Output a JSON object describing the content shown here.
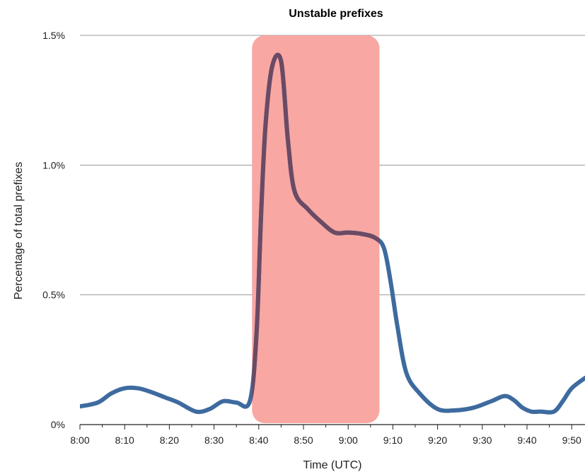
{
  "chart_data": {
    "type": "line",
    "title": "Unstable prefixes",
    "xlabel": "Time (UTC)",
    "ylabel": "Percentage of total prefixes",
    "x_tick_labels": [
      "8:00",
      "8:10",
      "8:20",
      "8:30",
      "8:40",
      "8:50",
      "9:00",
      "9:10",
      "9:20",
      "9:30",
      "9:40",
      "9:50"
    ],
    "y_tick_labels": [
      "0%",
      "0.5%",
      "1.0%",
      "1.5%"
    ],
    "y_ticks": [
      0,
      0.5,
      1.0,
      1.5
    ],
    "xlim_minutes": [
      0,
      113
    ],
    "ylim": [
      0,
      1.5
    ],
    "grid": true,
    "highlight_region": {
      "from_minutes": 38.5,
      "to_minutes": 67,
      "color": "#f8a7a2"
    },
    "series": [
      {
        "color": "#3e6b9f",
        "highlight_color": "#6b4a64",
        "x_minutes": [
          0,
          4,
          7,
          10,
          13,
          16,
          19,
          22,
          26,
          29,
          32,
          35,
          38,
          39.5,
          40.5,
          41.5,
          43,
          45,
          46.5,
          48,
          51,
          54,
          57,
          60,
          63,
          66,
          68,
          69.5,
          71,
          73,
          76,
          80,
          84,
          88,
          92,
          95,
          97,
          99,
          101,
          103,
          106,
          108,
          110,
          113
        ],
        "y_percent": [
          0.07,
          0.085,
          0.12,
          0.14,
          0.14,
          0.125,
          0.105,
          0.085,
          0.05,
          0.06,
          0.09,
          0.085,
          0.09,
          0.35,
          0.8,
          1.15,
          1.38,
          1.4,
          1.1,
          0.9,
          0.83,
          0.78,
          0.74,
          0.74,
          0.735,
          0.72,
          0.68,
          0.55,
          0.38,
          0.2,
          0.12,
          0.06,
          0.055,
          0.065,
          0.09,
          0.11,
          0.095,
          0.065,
          0.05,
          0.05,
          0.05,
          0.09,
          0.14,
          0.18
        ]
      }
    ]
  }
}
